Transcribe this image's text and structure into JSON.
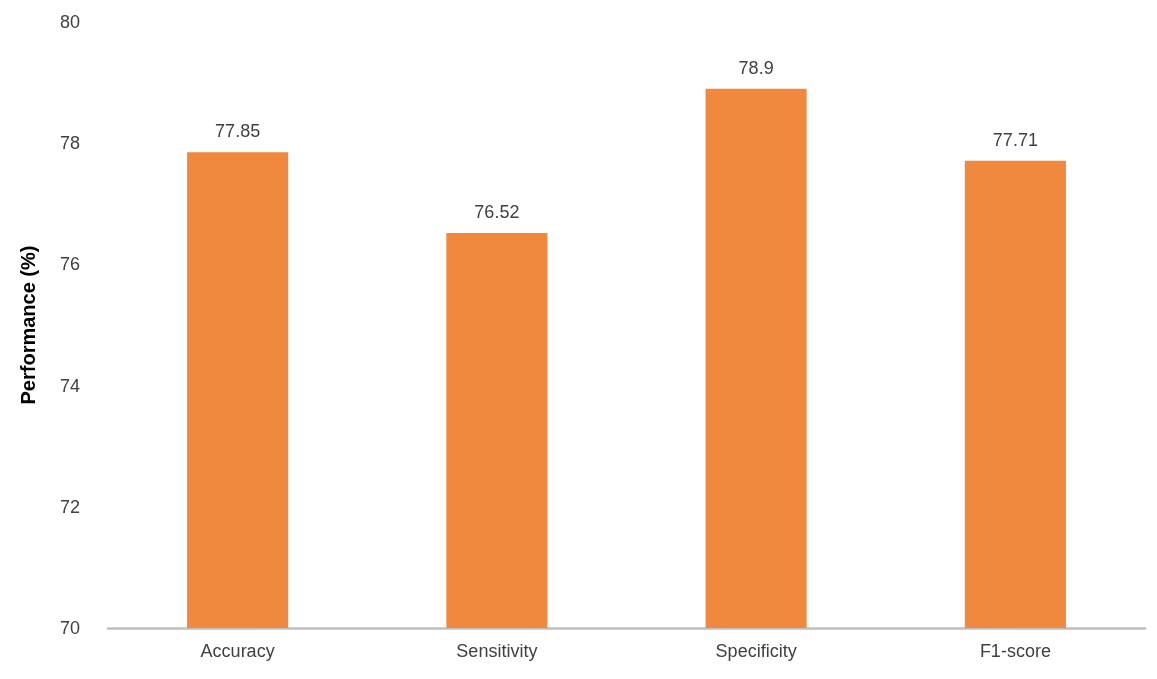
{
  "chart_data": {
    "type": "bar",
    "ylabel": "Performance (%)",
    "categories": [
      "Accuracy",
      "Sensitivity",
      "Specificity",
      "F1-score"
    ],
    "values": [
      77.85,
      76.52,
      78.9,
      77.71
    ],
    "color": "#f0883e",
    "ylim": [
      70,
      80
    ],
    "yticks": [
      70,
      72,
      74,
      76,
      78,
      80
    ],
    "data_labels": true,
    "grid": false
  }
}
